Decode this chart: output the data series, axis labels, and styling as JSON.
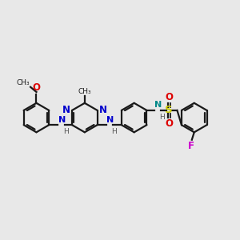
{
  "bg_color": "#e8e8e8",
  "bond_color": "#1a1a1a",
  "N_color": "#0000cc",
  "O_color": "#dd0000",
  "S_color": "#cccc00",
  "F_color": "#cc00cc",
  "lw": 1.6,
  "r": 0.62,
  "figsize": [
    3.0,
    3.0
  ],
  "dpi": 100,
  "xlim": [
    0,
    10
  ],
  "ylim": [
    0,
    10
  ]
}
